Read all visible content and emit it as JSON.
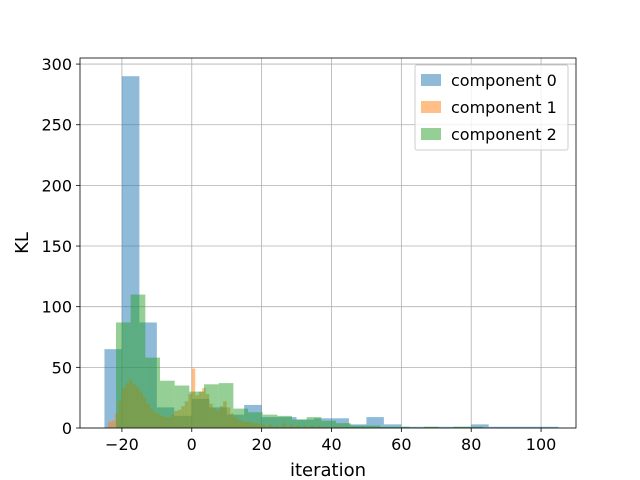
{
  "chart_data": {
    "type": "bar",
    "subtype": "histogram-overlay",
    "title": "",
    "xlabel": "iteration",
    "ylabel": "KL",
    "xlim": [
      -32,
      110
    ],
    "ylim": [
      0,
      305
    ],
    "xticks": [
      -20,
      0,
      20,
      40,
      60,
      80,
      100
    ],
    "yticks": [
      0,
      50,
      100,
      150,
      200,
      250,
      300
    ],
    "grid": true,
    "legend_position": "top-right",
    "alpha": 0.5,
    "series": [
      {
        "name": "component 0",
        "color": "#1f77b4",
        "bin_width": 5,
        "bins": [
          {
            "x": -25,
            "y": 65
          },
          {
            "x": -20,
            "y": 290
          },
          {
            "x": -15,
            "y": 87
          },
          {
            "x": -10,
            "y": 17
          },
          {
            "x": -5,
            "y": 10
          },
          {
            "x": 0,
            "y": 24
          },
          {
            "x": 5,
            "y": 17
          },
          {
            "x": 10,
            "y": 11
          },
          {
            "x": 15,
            "y": 19
          },
          {
            "x": 20,
            "y": 9
          },
          {
            "x": 25,
            "y": 9
          },
          {
            "x": 30,
            "y": 7
          },
          {
            "x": 35,
            "y": 8
          },
          {
            "x": 40,
            "y": 8
          },
          {
            "x": 45,
            "y": 3
          },
          {
            "x": 50,
            "y": 9
          },
          {
            "x": 55,
            "y": 3
          },
          {
            "x": 60,
            "y": 1
          },
          {
            "x": 65,
            "y": 1
          },
          {
            "x": 70,
            "y": 1
          },
          {
            "x": 75,
            "y": 1
          },
          {
            "x": 80,
            "y": 3
          },
          {
            "x": 85,
            "y": 1
          },
          {
            "x": 90,
            "y": 1
          },
          {
            "x": 95,
            "y": 1
          },
          {
            "x": 100,
            "y": 1
          }
        ]
      },
      {
        "name": "component 1",
        "color": "#ff7f0e",
        "bin_width": 1,
        "bins": [
          {
            "x": -24,
            "y": 5
          },
          {
            "x": -23,
            "y": 6
          },
          {
            "x": -22,
            "y": 12
          },
          {
            "x": -21,
            "y": 22
          },
          {
            "x": -20,
            "y": 33
          },
          {
            "x": -19,
            "y": 37
          },
          {
            "x": -18,
            "y": 40
          },
          {
            "x": -17,
            "y": 36
          },
          {
            "x": -16,
            "y": 34
          },
          {
            "x": -15,
            "y": 30
          },
          {
            "x": -14,
            "y": 25
          },
          {
            "x": -13,
            "y": 20
          },
          {
            "x": -12,
            "y": 16
          },
          {
            "x": -11,
            "y": 13
          },
          {
            "x": -10,
            "y": 12
          },
          {
            "x": -9,
            "y": 10
          },
          {
            "x": -8,
            "y": 9
          },
          {
            "x": -7,
            "y": 9
          },
          {
            "x": -6,
            "y": 11
          },
          {
            "x": -5,
            "y": 14
          },
          {
            "x": -4,
            "y": 15
          },
          {
            "x": -3,
            "y": 18
          },
          {
            "x": -2,
            "y": 22
          },
          {
            "x": -1,
            "y": 28
          },
          {
            "x": 0,
            "y": 49
          },
          {
            "x": 1,
            "y": 27
          },
          {
            "x": 2,
            "y": 30
          },
          {
            "x": 3,
            "y": 33
          },
          {
            "x": 4,
            "y": 28
          },
          {
            "x": 5,
            "y": 20
          },
          {
            "x": 6,
            "y": 16
          },
          {
            "x": 7,
            "y": 14
          },
          {
            "x": 8,
            "y": 18
          },
          {
            "x": 9,
            "y": 22
          },
          {
            "x": 10,
            "y": 17
          },
          {
            "x": 11,
            "y": 12
          },
          {
            "x": 12,
            "y": 9
          },
          {
            "x": 13,
            "y": 7
          },
          {
            "x": 14,
            "y": 6
          },
          {
            "x": 15,
            "y": 5
          },
          {
            "x": 16,
            "y": 5
          },
          {
            "x": 17,
            "y": 4
          },
          {
            "x": 18,
            "y": 4
          },
          {
            "x": 19,
            "y": 3
          },
          {
            "x": 20,
            "y": 3
          },
          {
            "x": 22,
            "y": 3
          },
          {
            "x": 24,
            "y": 2
          },
          {
            "x": 26,
            "y": 4
          },
          {
            "x": 28,
            "y": 3
          },
          {
            "x": 30,
            "y": 2
          },
          {
            "x": 32,
            "y": 2
          },
          {
            "x": 34,
            "y": 2
          },
          {
            "x": 36,
            "y": 2
          },
          {
            "x": 38,
            "y": 1
          },
          {
            "x": 40,
            "y": 1
          },
          {
            "x": 42,
            "y": 1
          },
          {
            "x": 44,
            "y": 1
          }
        ]
      },
      {
        "name": "component 2",
        "color": "#2ca02c",
        "bin_width": 4.2,
        "bins": [
          {
            "x": -21.7,
            "y": 87
          },
          {
            "x": -17.5,
            "y": 110
          },
          {
            "x": -13.3,
            "y": 58
          },
          {
            "x": -9.1,
            "y": 39
          },
          {
            "x": -4.9,
            "y": 35
          },
          {
            "x": -0.7,
            "y": 30
          },
          {
            "x": 3.5,
            "y": 36
          },
          {
            "x": 7.7,
            "y": 37
          },
          {
            "x": 11.9,
            "y": 16
          },
          {
            "x": 16.1,
            "y": 13
          },
          {
            "x": 20.3,
            "y": 11
          },
          {
            "x": 24.5,
            "y": 10
          },
          {
            "x": 28.7,
            "y": 7
          },
          {
            "x": 32.9,
            "y": 9
          },
          {
            "x": 37.1,
            "y": 6
          },
          {
            "x": 41.3,
            "y": 4
          },
          {
            "x": 45.5,
            "y": 2
          },
          {
            "x": 49.7,
            "y": 2
          },
          {
            "x": 53.9,
            "y": 1
          },
          {
            "x": 58.1,
            "y": 1
          },
          {
            "x": 62.3,
            "y": 0
          },
          {
            "x": 66.5,
            "y": 1
          },
          {
            "x": 70.7,
            "y": 0
          },
          {
            "x": 74.9,
            "y": 1
          },
          {
            "x": 79.1,
            "y": 1
          },
          {
            "x": 83.3,
            "y": 0
          },
          {
            "x": 87.5,
            "y": 0
          },
          {
            "x": 91.7,
            "y": 0
          },
          {
            "x": 95.9,
            "y": 0
          }
        ]
      }
    ]
  }
}
